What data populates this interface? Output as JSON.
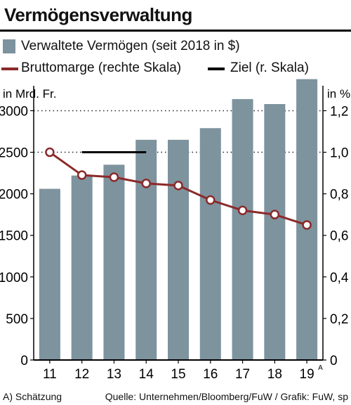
{
  "chart_data": {
    "type": "bar",
    "title": "Vermögensverwaltung",
    "categories": [
      "11",
      "12",
      "13",
      "14",
      "15",
      "16",
      "17",
      "18",
      "19"
    ],
    "category_superscripts": {
      "19": "A"
    },
    "series": [
      {
        "name": "Verwaltete Vermögen (seit 2018 in $)",
        "type": "bar",
        "axis": "left",
        "color": "#7d939e",
        "values": [
          2060,
          2220,
          2350,
          2650,
          2650,
          2790,
          3140,
          3080,
          3380
        ]
      },
      {
        "name": "Bruttomarge (rechte Skala)",
        "type": "line",
        "axis": "right",
        "color": "#8b2a2a",
        "values": [
          1.0,
          0.89,
          0.88,
          0.85,
          0.84,
          0.77,
          0.72,
          0.7,
          0.65
        ]
      },
      {
        "name": "Ziel (r. Skala)",
        "type": "line",
        "axis": "right",
        "color": "#000000",
        "x_range": [
          "12",
          "14"
        ],
        "value": 1.0
      }
    ],
    "ylabel_left": "in Mrd. Fr.",
    "ylabel_right": "in %",
    "ylim_left": [
      0,
      3300
    ],
    "ylim_right": [
      0,
      1.32
    ],
    "yticks_left": [
      "0",
      "500",
      "1000",
      "1500",
      "2000",
      "2500",
      "3000"
    ],
    "yticks_right": [
      "0",
      "0,2",
      "0,4",
      "0,6",
      "0,8",
      "1,0",
      "1,2"
    ],
    "gridlines": "dotted at 2500 and 3000",
    "legend_position": "top"
  },
  "footer": {
    "note": "A) Schätzung",
    "source": "Quelle: Unternehmen/Bloomberg/FuW / Grafik: FuW, sp"
  }
}
